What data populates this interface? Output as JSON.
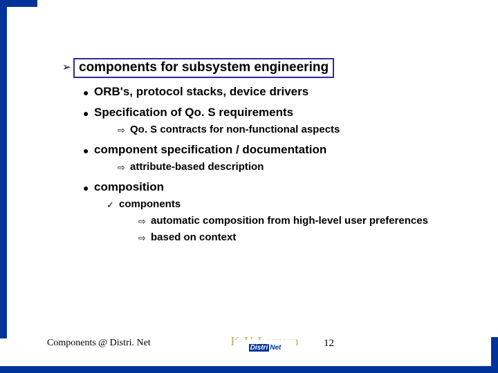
{
  "colors": {
    "border": "#003399",
    "box_border": "#2a2aa0",
    "background": "#ffffff",
    "text": "#000000",
    "logo_text": "#c0b050"
  },
  "typography": {
    "body_font": "Comic Sans MS",
    "footer_font": "Times New Roman",
    "title_fontsize": 19,
    "lvl1_fontsize": 17,
    "lvl2_fontsize": 15,
    "footer_fontsize": 14
  },
  "bullets": {
    "top_arrow": "➢",
    "dot": "●",
    "arrow_right": "⇨",
    "check": "✓"
  },
  "title": "components for subsystem engineering",
  "items": {
    "i1": "ORB's, protocol stacks, device drivers",
    "i2": "Specification of Qo. S requirements",
    "i2a": "Qo. S contracts for non-functional aspects",
    "i3": "component specification / documentation",
    "i3a": "attribute-based description",
    "i4": "composition",
    "i4a": "components",
    "i4a1": "automatic composition from high-level user preferences",
    "i4a2": "based on context"
  },
  "footer": {
    "left": "Components @ Distri. Net",
    "logo_watermark": "K.U.Leuven",
    "logo_main_left": "Distri",
    "logo_main_right": "Net",
    "logo_sub": "RESEARCH GROUP",
    "page": "12"
  }
}
